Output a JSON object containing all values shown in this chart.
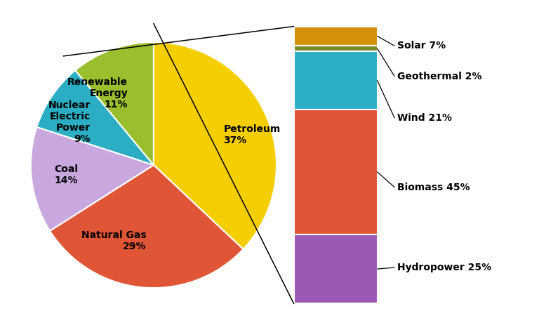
{
  "pie_labels": [
    "Petroleum\n37%",
    "Natural Gas\n29%",
    "Coal\n14%",
    "Nuclear\nElectric\nPower\n9%",
    "Renewable\nEnergy\n11%"
  ],
  "pie_values": [
    37,
    29,
    14,
    9,
    11
  ],
  "pie_colors": [
    "#F5CE00",
    "#E05535",
    "#C9A8E0",
    "#2BAEC4",
    "#99BE2E"
  ],
  "pie_startangle": 90,
  "pie_counterclock": false,
  "bar_labels": [
    "Solar 7%",
    "Geothermal 2%",
    "Wind 21%",
    "Biomass 45%",
    "Hydropower 25%"
  ],
  "bar_values": [
    7,
    2,
    21,
    45,
    25
  ],
  "bar_colors": [
    "#D4900A",
    "#7A8C2A",
    "#2BAEC4",
    "#E05535",
    "#9B59B6"
  ],
  "background_color": "#FFFFFF",
  "label_fontsize": 10,
  "label_fontweight": "bold"
}
